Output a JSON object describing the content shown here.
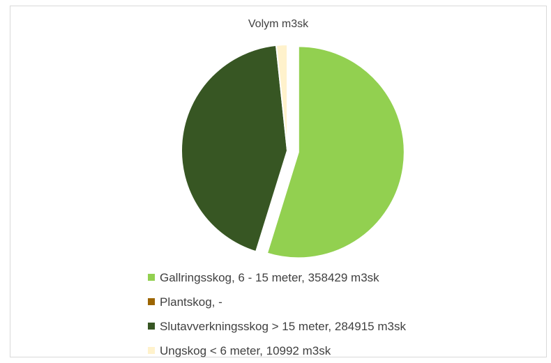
{
  "chart_data": {
    "type": "pie",
    "title": "Volym m3sk",
    "slices": [
      {
        "label": "Gallringsskog, 6 - 15 meter,  358429 m3sk",
        "value": 358429,
        "color": "#92d050",
        "exploded": true
      },
      {
        "label": "Plantskog, -",
        "value": 0,
        "color": "#9c6500",
        "exploded": false
      },
      {
        "label": "Slutavverkningsskog > 15 meter, 284915 m3sk",
        "value": 284915,
        "color": "#375623",
        "exploded": false
      },
      {
        "label": "Ungskog < 6 meter, 10992 m3sk",
        "value": 10992,
        "color": "#fff2cc",
        "exploded": false
      }
    ],
    "legend_position": "bottom"
  }
}
